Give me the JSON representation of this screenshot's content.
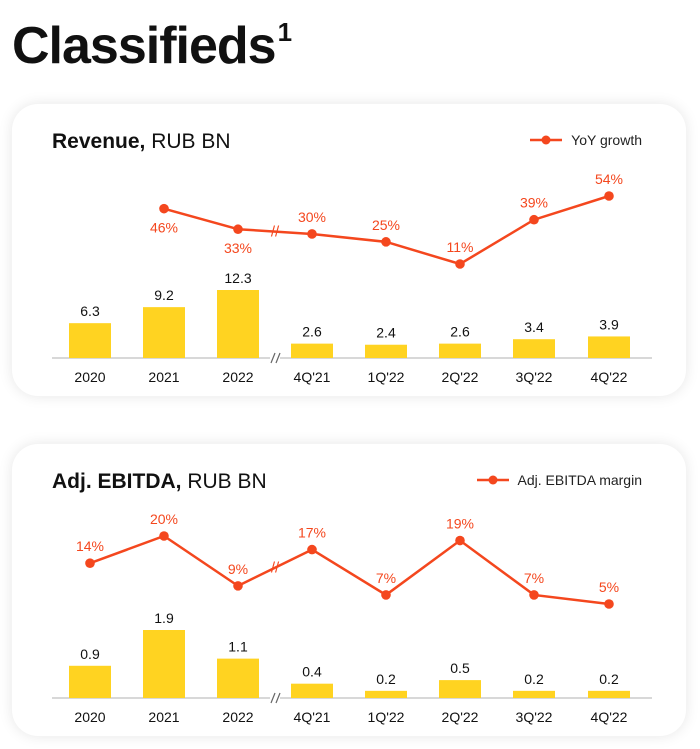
{
  "page": {
    "title": "Classifieds",
    "title_footnote": "1"
  },
  "colors": {
    "bar": "#FFD321",
    "line": "#F4471E",
    "baseline": "#CCCCCC",
    "text": "#111111"
  },
  "chart_data": [
    {
      "type": "bar",
      "title_bold": "Revenue,",
      "title_rest": " RUB BN",
      "categories": [
        "2020",
        "2021",
        "2022",
        "4Q'21",
        "1Q'22",
        "2Q'22",
        "3Q'22",
        "4Q'22"
      ],
      "axis_break_after": "2022",
      "series": [
        {
          "type": "bar",
          "values": [
            6.3,
            9.2,
            12.3,
            2.6,
            2.4,
            2.6,
            3.4,
            3.9
          ],
          "labels": [
            "6.3",
            "9.2",
            "12.3",
            "2.6",
            "2.4",
            "2.6",
            "3.4",
            "3.9"
          ]
        },
        {
          "type": "line",
          "name": "YoY growth",
          "values": [
            null,
            46,
            33,
            30,
            25,
            11,
            39,
            54
          ],
          "labels": [
            "",
            "46%",
            "33%",
            "30%",
            "25%",
            "11%",
            "39%",
            "54%"
          ],
          "label_position": [
            "",
            "below",
            "below",
            "above",
            "above",
            "above",
            "above",
            "above"
          ]
        }
      ],
      "legend": "top-right"
    },
    {
      "type": "bar",
      "title_bold": "Adj. EBITDA,",
      "title_rest": " RUB BN",
      "categories": [
        "2020",
        "2021",
        "2022",
        "4Q'21",
        "1Q'22",
        "2Q'22",
        "3Q'22",
        "4Q'22"
      ],
      "axis_break_after": "2022",
      "series": [
        {
          "type": "bar",
          "values": [
            0.9,
            1.9,
            1.1,
            0.4,
            0.2,
            0.5,
            0.2,
            0.2
          ],
          "labels": [
            "0.9",
            "1.9",
            "1.1",
            "0.4",
            "0.2",
            "0.5",
            "0.2",
            "0.2"
          ]
        },
        {
          "type": "line",
          "name": "Adj. EBITDA margin",
          "values": [
            14,
            20,
            9,
            17,
            7,
            19,
            7,
            5
          ],
          "labels": [
            "14%",
            "20%",
            "9%",
            "17%",
            "7%",
            "19%",
            "7%",
            "5%"
          ],
          "label_position": [
            "above",
            "above",
            "above",
            "above",
            "above",
            "above",
            "above",
            "above"
          ]
        }
      ],
      "legend": "top-right"
    }
  ]
}
